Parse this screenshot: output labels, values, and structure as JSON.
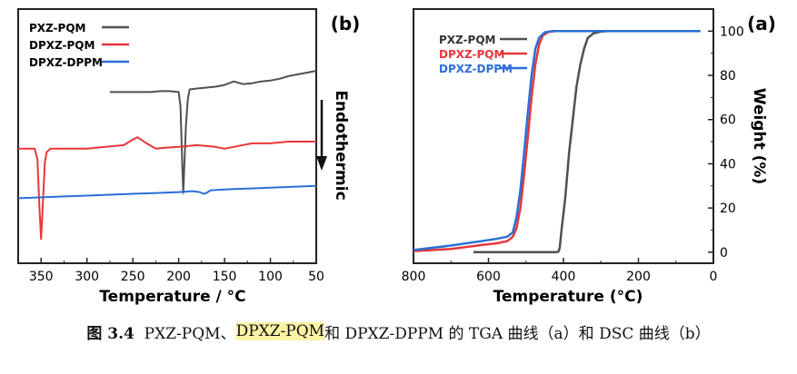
{
  "chart_data": [
    {
      "panel_label": "(b)",
      "type": "line",
      "x_axis_direction": "reversed",
      "xlabel": "Temperature / °C",
      "xlim": [
        50,
        375
      ],
      "xticks": [
        350,
        300,
        250,
        200,
        150,
        100,
        50
      ],
      "xtick_labels": [
        "350",
        "300",
        "250",
        "200",
        "150",
        "100",
        "50"
      ],
      "annotation": "Endothermic",
      "arrow_direction": "down",
      "grid": false,
      "legend_position": "top-left",
      "series": [
        {
          "name": "PXZ-PQM",
          "color": "#505050",
          "points": [
            [
              50,
              0.0
            ],
            [
              60,
              -0.1
            ],
            [
              70,
              -0.2
            ],
            [
              80,
              -0.3
            ],
            [
              90,
              -0.45
            ],
            [
              100,
              -0.55
            ],
            [
              110,
              -0.6
            ],
            [
              120,
              -0.7
            ],
            [
              130,
              -0.75
            ],
            [
              140,
              -0.6
            ],
            [
              150,
              -0.8
            ],
            [
              160,
              -0.9
            ],
            [
              170,
              -0.95
            ],
            [
              180,
              -1.0
            ],
            [
              188,
              -1.05
            ],
            [
              190,
              -1.6
            ],
            [
              192,
              -3.0
            ],
            [
              194,
              -5.5
            ],
            [
              195,
              -6.9
            ],
            [
              196,
              -5.5
            ],
            [
              198,
              -2.0
            ],
            [
              200,
              -1.2
            ],
            [
              210,
              -1.15
            ],
            [
              220,
              -1.15
            ],
            [
              230,
              -1.2
            ],
            [
              240,
              -1.2
            ],
            [
              250,
              -1.2
            ],
            [
              260,
              -1.2
            ],
            [
              275,
              -1.2
            ]
          ]
        },
        {
          "name": "DPXZ-PQM",
          "color": "#e8363a",
          "points": [
            [
              50,
              -4.0
            ],
            [
              60,
              -4.0
            ],
            [
              80,
              -4.0
            ],
            [
              100,
              -4.1
            ],
            [
              120,
              -4.1
            ],
            [
              140,
              -4.3
            ],
            [
              150,
              -4.4
            ],
            [
              160,
              -4.3
            ],
            [
              180,
              -4.2
            ],
            [
              200,
              -4.3
            ],
            [
              215,
              -4.35
            ],
            [
              225,
              -4.4
            ],
            [
              235,
              -4.1
            ],
            [
              245,
              -3.75
            ],
            [
              252,
              -3.95
            ],
            [
              260,
              -4.2
            ],
            [
              280,
              -4.3
            ],
            [
              300,
              -4.4
            ],
            [
              320,
              -4.4
            ],
            [
              335,
              -4.4
            ],
            [
              340,
              -4.4
            ],
            [
              344,
              -4.6
            ],
            [
              346,
              -5.2
            ],
            [
              348,
              -7.5
            ],
            [
              350,
              -9.5
            ],
            [
              352,
              -7.5
            ],
            [
              354,
              -5.0
            ],
            [
              357,
              -4.4
            ],
            [
              365,
              -4.4
            ],
            [
              375,
              -4.4
            ]
          ]
        },
        {
          "name": "DPXZ-DPPM",
          "color": "#2a6fd6",
          "points": [
            [
              50,
              -6.5
            ],
            [
              75,
              -6.55
            ],
            [
              100,
              -6.6
            ],
            [
              125,
              -6.65
            ],
            [
              150,
              -6.7
            ],
            [
              165,
              -6.75
            ],
            [
              170,
              -6.9
            ],
            [
              173,
              -6.95
            ],
            [
              177,
              -6.85
            ],
            [
              185,
              -6.8
            ],
            [
              200,
              -6.85
            ],
            [
              225,
              -6.9
            ],
            [
              250,
              -6.95
            ],
            [
              275,
              -7.0
            ],
            [
              300,
              -7.05
            ],
            [
              325,
              -7.1
            ],
            [
              350,
              -7.15
            ],
            [
              375,
              -7.2
            ]
          ]
        }
      ]
    },
    {
      "panel_label": "(a)",
      "type": "line",
      "x_axis_direction": "reversed",
      "xlabel": "Temperature (°C)",
      "ylabel": "Weight (%)",
      "xlim": [
        0,
        800
      ],
      "ylim": [
        -5,
        110
      ],
      "xticks": [
        800,
        600,
        400,
        200,
        0
      ],
      "xtick_labels": [
        "800",
        "600",
        "400",
        "200",
        "0"
      ],
      "yticks": [
        0,
        20,
        40,
        60,
        80,
        100
      ],
      "ytick_labels": [
        "0",
        "20",
        "40",
        "60",
        "80",
        "100"
      ],
      "grid": false,
      "legend_position": "top-left",
      "series": [
        {
          "name": "PXZ-PQM",
          "color": "#505050",
          "points": [
            [
              35,
              100
            ],
            [
              100,
              100
            ],
            [
              200,
              100
            ],
            [
              280,
              100
            ],
            [
              300,
              99.8
            ],
            [
              320,
              99
            ],
            [
              335,
              97
            ],
            [
              345,
              92
            ],
            [
              355,
              85
            ],
            [
              365,
              75
            ],
            [
              375,
              60
            ],
            [
              385,
              45
            ],
            [
              395,
              25
            ],
            [
              405,
              10
            ],
            [
              410,
              2
            ],
            [
              413,
              0.3
            ],
            [
              420,
              0
            ],
            [
              500,
              0
            ],
            [
              600,
              0
            ],
            [
              640,
              0
            ]
          ]
        },
        {
          "name": "DPXZ-PQM",
          "color": "#e8363a",
          "points": [
            [
              35,
              100
            ],
            [
              100,
              100
            ],
            [
              200,
              100
            ],
            [
              350,
              100
            ],
            [
              420,
              100
            ],
            [
              440,
              99.7
            ],
            [
              455,
              98
            ],
            [
              465,
              94
            ],
            [
              475,
              85
            ],
            [
              485,
              70
            ],
            [
              495,
              52
            ],
            [
              505,
              35
            ],
            [
              515,
              20
            ],
            [
              525,
              11
            ],
            [
              535,
              7
            ],
            [
              550,
              5
            ],
            [
              580,
              4
            ],
            [
              620,
              3.2
            ],
            [
              700,
              1.5
            ],
            [
              800,
              0.5
            ]
          ]
        },
        {
          "name": "DPXZ-DPPM",
          "color": "#2a6fd6",
          "points": [
            [
              35,
              100
            ],
            [
              100,
              100
            ],
            [
              200,
              100
            ],
            [
              350,
              100
            ],
            [
              430,
              100
            ],
            [
              450,
              99.5
            ],
            [
              465,
              97
            ],
            [
              475,
              92
            ],
            [
              485,
              80
            ],
            [
              495,
              63
            ],
            [
              505,
              45
            ],
            [
              515,
              28
            ],
            [
              525,
              16
            ],
            [
              535,
              9
            ],
            [
              550,
              7
            ],
            [
              580,
              6
            ],
            [
              620,
              5
            ],
            [
              700,
              3
            ],
            [
              800,
              1
            ]
          ]
        }
      ]
    }
  ],
  "caption": {
    "figure_no": "图 3.4",
    "part1": "PXZ-PQM、",
    "highlight": "DPXZ-PQM",
    "part2": " 和 DPXZ-DPPM 的 TGA 曲线（a）和 DSC 曲线（b）"
  }
}
